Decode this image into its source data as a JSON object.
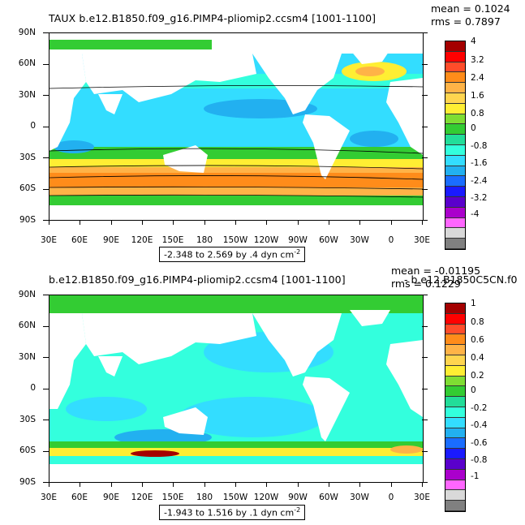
{
  "panels": [
    {
      "title": "TAUX b.e12.B1850.f09_g16.PIMP4-pliomip2.ccsm4 [1001-1100]",
      "mean": "mean = 0.1024",
      "rms": "rms = 0.7897",
      "range": "-2.348 to 2.569 by .4 dyn cm",
      "range_exp": "-2",
      "colorbar_labels": [
        "4",
        "3.2",
        "2.4",
        "1.6",
        "0.8",
        "0",
        "-0.8",
        "-1.6",
        "-2.4",
        "-3.2",
        "-4"
      ],
      "colorbar_colors": [
        "#a40000",
        "#ff0000",
        "#ff4c2a",
        "#ff8c1a",
        "#ffb347",
        "#ffd54f",
        "#ffee33",
        "#7fdd33",
        "#33cc33",
        "#22dd99",
        "#33ffdd",
        "#33ddff",
        "#22b0f0",
        "#1a6dff",
        "#1a1aff",
        "#5a00cc",
        "#aa00cc",
        "#ff66ff",
        "#d9d9d9",
        "#808080"
      ]
    },
    {
      "title": "b.e12.B1850.f09_g16.PIMP4-pliomip2.ccsm4 [1001-1100]",
      "subtitle_extra": "- b.e12.B1850C5CN.f0",
      "mean": "mean = -0.01195",
      "rms": "rms = 0.1229",
      "range": "-1.943 to 1.516 by .1 dyn cm",
      "range_exp": "-2",
      "colorbar_labels": [
        "1",
        "0.8",
        "0.6",
        "0.4",
        "0.2",
        "0",
        "-0.2",
        "-0.4",
        "-0.6",
        "-0.8",
        "-1"
      ],
      "colorbar_colors": [
        "#a40000",
        "#ff0000",
        "#ff4c2a",
        "#ff8c1a",
        "#ffb347",
        "#ffd54f",
        "#ffee33",
        "#7fdd33",
        "#33cc33",
        "#22dd99",
        "#33ffdd",
        "#33ddff",
        "#22b0f0",
        "#1a6dff",
        "#1a1aff",
        "#5a00cc",
        "#aa00cc",
        "#ff66ff",
        "#d9d9d9",
        "#808080"
      ]
    }
  ],
  "lat_labels": [
    "90N",
    "60N",
    "30N",
    "0",
    "30S",
    "60S",
    "90S"
  ],
  "lon_labels": [
    "30E",
    "60E",
    "90E",
    "120E",
    "150E",
    "180",
    "150W",
    "120W",
    "90W",
    "60W",
    "30W",
    "0",
    "30E"
  ]
}
